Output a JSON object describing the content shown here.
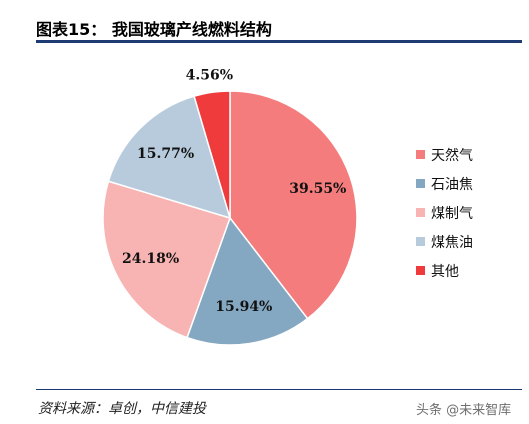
{
  "header": {
    "figure_title": "图表15：   我国玻璃产线燃料结构"
  },
  "footer": {
    "source": "资料来源：卓创，中信建投",
    "watermark": "头条 @未来智库"
  },
  "chart_data": {
    "type": "pie",
    "title": "",
    "legend_position": "right",
    "labels": [
      "天然气",
      "石油焦",
      "煤制气",
      "煤焦油",
      "其他"
    ],
    "values": [
      39.55,
      15.94,
      24.18,
      15.77,
      4.56
    ],
    "value_labels": [
      "39.55%",
      "15.94%",
      "24.18%",
      "15.77%",
      "4.56%"
    ],
    "colors": [
      "#f47c7c",
      "#85a8c2",
      "#f8b3b3",
      "#b7cbdc",
      "#ef3b3b"
    ]
  }
}
